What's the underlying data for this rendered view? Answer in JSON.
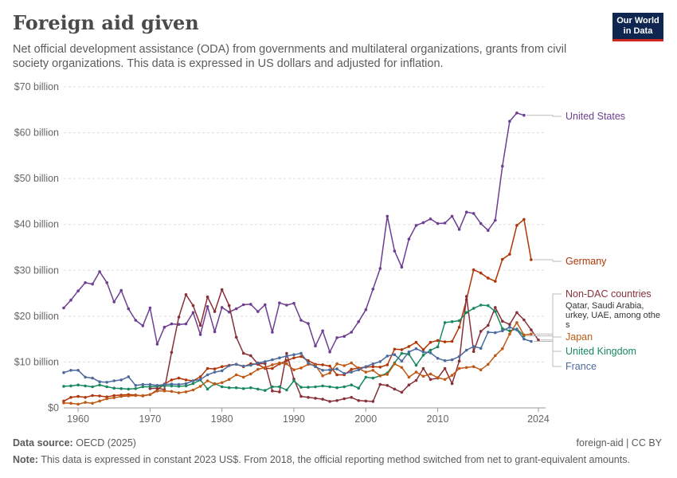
{
  "header": {
    "title": "Foreign aid given",
    "subtitle": "Net official development assistance (ODA) from governments and multilateral organizations, grants from civil society organizations. This data is expressed in US dollars and adjusted for inflation.",
    "logo_line1": "Our World",
    "logo_line2": "in Data"
  },
  "footer": {
    "source_label": "Data source:",
    "source_value": "OECD (2025)",
    "right": "foreign-aid | CC BY",
    "note_label": "Note:",
    "note_value": "This data is expressed in constant 2023 US$. From 2018, the official reporting method switched from net to grant-equivalent amounts."
  },
  "chart_data": {
    "type": "line",
    "x_ticks": [
      1960,
      1970,
      1980,
      1990,
      2000,
      2010,
      2024
    ],
    "y_ticks": [
      0,
      10,
      20,
      30,
      40,
      50,
      60,
      70
    ],
    "y_tick_labels": [
      "$0",
      "$10 billion",
      "$20 billion",
      "$30 billion",
      "$40 billion",
      "$50 billion",
      "$60 billion",
      "$70 billion"
    ],
    "xlim": [
      1958,
      2025
    ],
    "ylim": [
      0,
      70
    ],
    "grid": "horizontal dashed",
    "series": [
      {
        "name": "United States",
        "color": "#6d3e91",
        "x_start": 1958,
        "values": [
          21.8,
          23.5,
          25.5,
          27.3,
          27.0,
          29.7,
          27.3,
          23.1,
          25.6,
          21.6,
          19.1,
          17.9,
          21.8,
          13.9,
          17.6,
          18.3,
          18.2,
          18.3,
          20.8,
          16.0,
          22.1,
          16.6,
          21.9,
          20.9,
          21.6,
          22.5,
          22.6,
          21.0,
          22.5,
          16.5,
          22.9,
          22.4,
          22.8,
          19.1,
          18.4,
          13.5,
          16.8,
          12.2,
          15.3,
          15.6,
          16.5,
          18.8,
          21.4,
          25.9,
          30.4,
          41.8,
          34.2,
          30.7,
          36.8,
          39.8,
          40.4,
          41.2,
          40.2,
          40.3,
          41.8,
          38.9,
          42.7,
          42.4,
          40.2,
          38.7,
          40.9,
          52.7,
          62.5,
          64.3,
          63.8
        ],
        "label": "United States"
      },
      {
        "name": "Germany",
        "color": "#b13507",
        "x_start": 1958,
        "values": [
          1.5,
          2.3,
          2.5,
          2.3,
          2.7,
          2.6,
          2.4,
          2.7,
          2.8,
          2.9,
          2.8,
          2.6,
          2.9,
          3.9,
          5.2,
          6.1,
          6.5,
          6.1,
          5.9,
          6.8,
          8.6,
          8.5,
          9.0,
          9.3,
          9.5,
          9.0,
          9.6,
          9.5,
          8.6,
          8.6,
          9.6,
          10.3,
          10.9,
          11.2,
          10.3,
          9.5,
          9.4,
          9.1,
          7.2,
          7.2,
          8.4,
          8.7,
          8.9,
          9.0,
          8.9,
          9.4,
          12.8,
          12.7,
          13.4,
          14.3,
          12.7,
          14.3,
          14.7,
          14.4,
          14.5,
          17.6,
          23.6,
          30.1,
          29.4,
          28.3,
          27.6,
          32.4,
          33.5,
          39.8,
          41.1,
          32.3
        ],
        "label": "Germany"
      },
      {
        "name": "Non-DAC countries",
        "color": "#883039",
        "x_start": 1970,
        "values": [
          4.2,
          4.3,
          4.0,
          12.1,
          19.8,
          24.7,
          22.3,
          18.0,
          24.2,
          21.0,
          25.8,
          22.3,
          15.4,
          11.9,
          11.4,
          9.6,
          9.7,
          3.7,
          3.5,
          11.9,
          6.3,
          2.5,
          2.3,
          2.1,
          1.9,
          1.4,
          1.6,
          2.0,
          2.3,
          1.6,
          1.5,
          1.4,
          5.1,
          4.9,
          4.1,
          3.4,
          5.0,
          6.0,
          8.6,
          6.2,
          6.5,
          8.6,
          5.3,
          10.2,
          24.3,
          12.3,
          16.7,
          18.0,
          21.9,
          18.9,
          18.2,
          20.8,
          19.2,
          17.0,
          14.8
        ],
        "label": "Non-DAC countries"
      },
      {
        "name": "United Kingdom",
        "color": "#18895e",
        "x_start": 1958,
        "values": [
          4.7,
          4.8,
          5.0,
          4.8,
          4.6,
          5.0,
          4.6,
          4.3,
          4.2,
          4.1,
          4.2,
          4.6,
          4.6,
          4.7,
          4.8,
          4.8,
          4.7,
          4.8,
          5.3,
          6.1,
          4.1,
          5.3,
          4.6,
          4.4,
          4.4,
          4.2,
          4.4,
          4.1,
          3.8,
          4.6,
          4.6,
          3.9,
          5.9,
          4.5,
          4.5,
          4.6,
          4.8,
          4.6,
          4.4,
          4.6,
          5.0,
          4.3,
          6.7,
          6.5,
          7.0,
          7.6,
          9.8,
          11.9,
          11.7,
          9.3,
          11.5,
          12.6,
          13.3,
          18.6,
          18.8,
          19.0,
          20.8,
          21.7,
          22.4,
          22.3,
          21.0,
          17.3,
          16.8,
          17.2,
          15.7
        ],
        "label": "United Kingdom"
      },
      {
        "name": "Japan",
        "color": "#be5915",
        "x_start": 1958,
        "values": [
          1.1,
          1.0,
          0.8,
          1.2,
          1.0,
          1.5,
          2.0,
          2.2,
          2.5,
          2.6,
          2.7,
          2.7,
          2.9,
          3.7,
          3.7,
          3.6,
          3.3,
          3.5,
          3.9,
          4.7,
          5.9,
          5.2,
          5.5,
          6.2,
          7.2,
          6.7,
          7.4,
          8.4,
          8.8,
          9.4,
          9.8,
          9.6,
          8.3,
          8.7,
          9.5,
          9.3,
          7.0,
          7.6,
          9.6,
          9.2,
          9.8,
          8.6,
          7.8,
          8.2,
          7.0,
          7.3,
          9.6,
          8.8,
          6.7,
          7.8,
          6.9,
          7.4,
          6.6,
          6.2,
          7.1,
          8.6,
          8.8,
          9.0,
          8.3,
          9.5,
          11.4,
          12.9,
          16.1,
          18.6,
          15.9,
          16.1
        ],
        "label": "Japan"
      },
      {
        "name": "France",
        "color": "#4c6a9c",
        "x_start": 1958,
        "values": [
          7.7,
          8.2,
          8.2,
          6.7,
          6.5,
          5.7,
          5.6,
          5.9,
          6.1,
          6.8,
          4.9,
          5.1,
          5.1,
          4.9,
          5.1,
          5.2,
          5.1,
          5.3,
          5.9,
          6.2,
          7.2,
          7.8,
          8.1,
          9.2,
          9.5,
          9.1,
          9.3,
          9.8,
          10.1,
          10.5,
          10.9,
          11.3,
          11.6,
          11.9,
          9.8,
          9.0,
          8.2,
          8.3,
          8.5,
          7.5,
          7.8,
          8.3,
          9.0,
          9.6,
          10.1,
          11.3,
          11.6,
          10.2,
          12.2,
          12.9,
          12.2,
          12.0,
          10.8,
          10.3,
          10.5,
          11.2,
          12.6,
          13.4,
          13.0,
          16.5,
          16.4,
          16.8,
          17.6,
          17.0,
          15.0,
          14.5
        ],
        "label": "France"
      }
    ],
    "annotation": "Qatar, Saudi Arabia, Turkey, UAE, among others"
  }
}
